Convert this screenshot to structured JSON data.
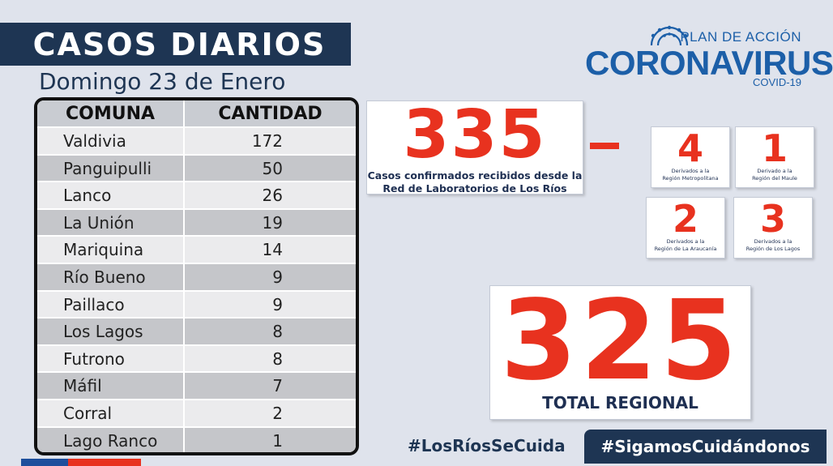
{
  "header": {
    "title": "CASOS DIARIOS",
    "date": "Domingo 23 de Enero"
  },
  "logo": {
    "top": "PLAN DE ACCIÓN",
    "main": "CORONAVIRUS",
    "sub": "COVID-19",
    "color": "#1c5fa8"
  },
  "table": {
    "headers": [
      "COMUNA",
      "CANTIDAD"
    ],
    "rows": [
      {
        "comuna": "Valdivia",
        "cantidad": "172"
      },
      {
        "comuna": "Panguipulli",
        "cantidad": "50"
      },
      {
        "comuna": "Lanco",
        "cantidad": "26"
      },
      {
        "comuna": "La Unión",
        "cantidad": "19"
      },
      {
        "comuna": "Mariquina",
        "cantidad": "14"
      },
      {
        "comuna": "Río Bueno",
        "cantidad": "9"
      },
      {
        "comuna": "Paillaco",
        "cantidad": "9"
      },
      {
        "comuna": "Los Lagos",
        "cantidad": "8"
      },
      {
        "comuna": "Futrono",
        "cantidad": "8"
      },
      {
        "comuna": "Máfil",
        "cantidad": "7"
      },
      {
        "comuna": "Corral",
        "cantidad": "2"
      },
      {
        "comuna": "Lago Ranco",
        "cantidad": "1"
      }
    ]
  },
  "confirmed": {
    "number": "335",
    "caption_line1": "Casos confirmados recibidos desde la",
    "caption_line2": "Red de Laboratorios de Los Ríos"
  },
  "derived": [
    {
      "number": "4",
      "line1": "Derivados a la",
      "line2": "Región Metropolitana"
    },
    {
      "number": "1",
      "line1": "Derivado a la",
      "line2": "Región del Maule"
    },
    {
      "number": "2",
      "line1": "Derivados a la",
      "line2": "Región de La Araucanía"
    },
    {
      "number": "3",
      "line1": "Derivados a la",
      "line2": "Región de Los Lagos"
    }
  ],
  "total": {
    "number": "325",
    "label": "TOTAL REGIONAL"
  },
  "hashtags": {
    "primary": "#LosRíosSeCuida",
    "secondary": "#SigamosCuidándonos"
  },
  "colors": {
    "navy": "#1e3553",
    "accent_red": "#e8321f",
    "background": "#dfe3ec"
  }
}
